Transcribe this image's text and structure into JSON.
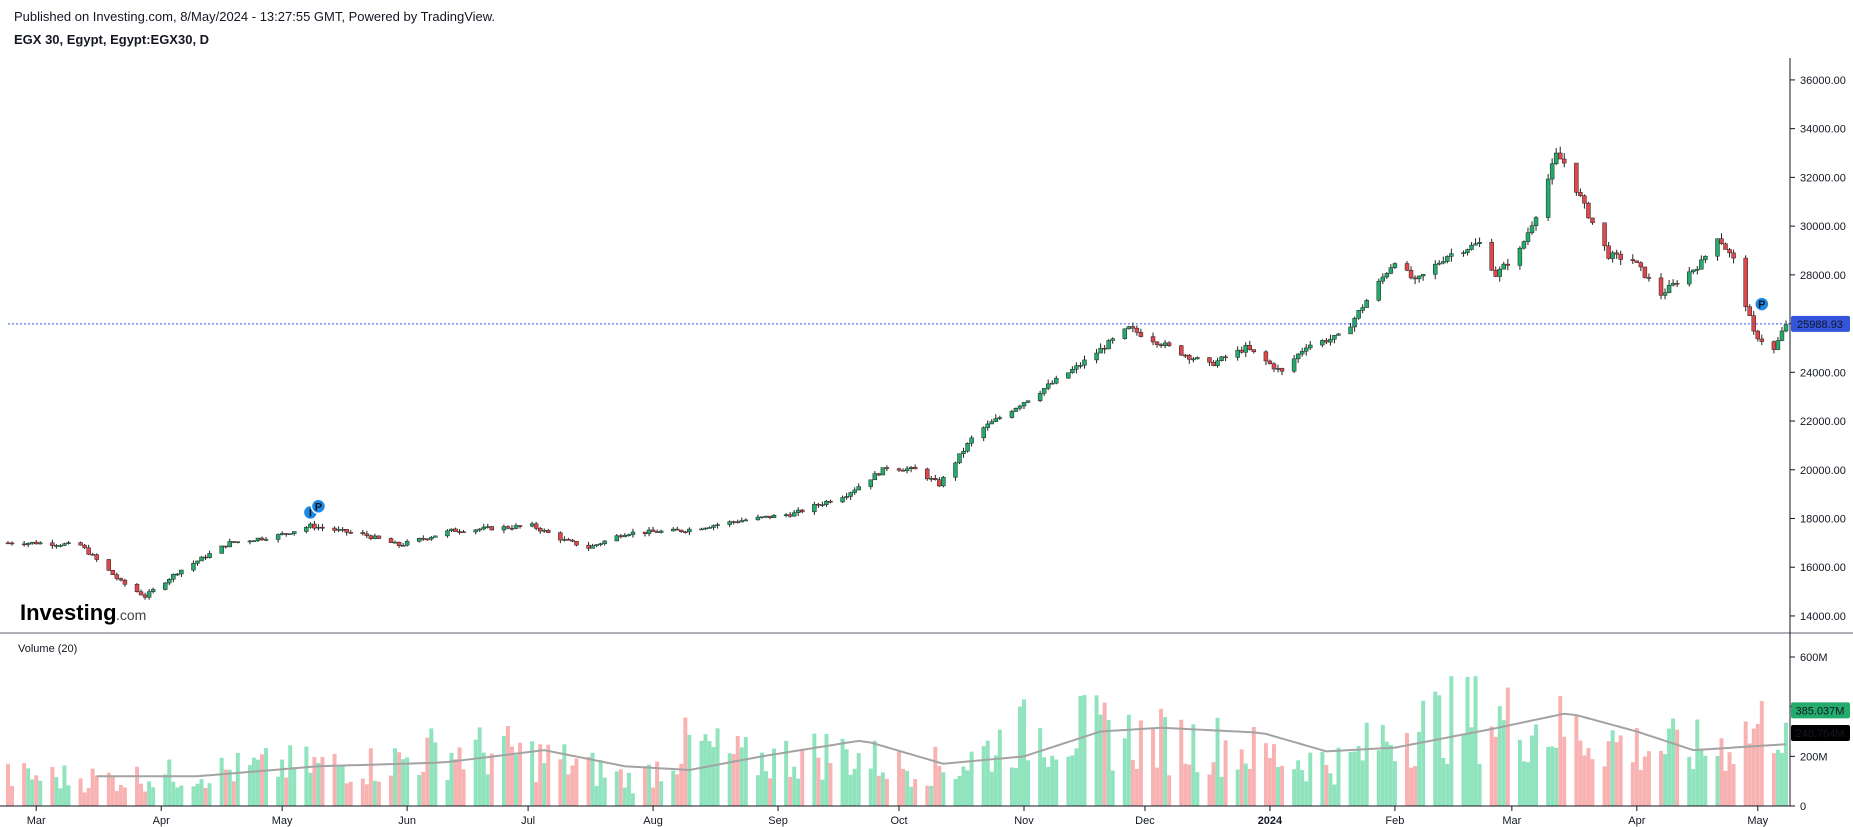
{
  "header": {
    "published": "Published on Investing.com, 8/May/2024 - 13:27:55 GMT, Powered by TradingView.",
    "symbol": "EGX 30, Egypt, Egypt:EGX30, D"
  },
  "logo": {
    "main": "Investing",
    "suffix": ".com"
  },
  "colors": {
    "up": "#22ab6a",
    "down": "#e0474c",
    "vol_up": "#8fe3bd",
    "vol_down": "#f9b2b2",
    "ma": "#a3a3a3",
    "price_line": "#3455db",
    "grid_axis": "#131722"
  },
  "chart_data": [
    {
      "type": "candlestick",
      "title": "EGX 30, Egypt, Egypt:EGX30, D",
      "x_labels": [
        "Mar",
        "Apr",
        "May",
        "Jun",
        "Jul",
        "Aug",
        "Sep",
        "Oct",
        "Nov",
        "Dec",
        "2024",
        "Feb",
        "Mar",
        "Apr",
        "May"
      ],
      "y_ticks": [
        "14000.00",
        "16000.00",
        "18000.00",
        "20000.00",
        "22000.00",
        "24000.00",
        "26000.00",
        "28000.00",
        "30000.00",
        "32000.00",
        "34000.00",
        "36000.00"
      ],
      "ylim": [
        13300,
        36900
      ],
      "last_price": "25988.93",
      "close_anchors": [
        [
          "2023-03-01",
          17000
        ],
        [
          "2023-03-12",
          16900
        ],
        [
          "2023-03-22",
          15400
        ],
        [
          "2023-03-28",
          14800
        ],
        [
          "2023-04-05",
          15800
        ],
        [
          "2023-04-18",
          17000
        ],
        [
          "2023-04-30",
          17300
        ],
        [
          "2023-05-08",
          17700
        ],
        [
          "2023-05-22",
          17300
        ],
        [
          "2023-05-30",
          16900
        ],
        [
          "2023-06-12",
          17500
        ],
        [
          "2023-06-22",
          17600
        ],
        [
          "2023-07-02",
          17700
        ],
        [
          "2023-07-10",
          17100
        ],
        [
          "2023-07-16",
          16800
        ],
        [
          "2023-07-25",
          17400
        ],
        [
          "2023-08-08",
          17500
        ],
        [
          "2023-08-22",
          17900
        ],
        [
          "2023-09-05",
          18200
        ],
        [
          "2023-09-18",
          19000
        ],
        [
          "2023-09-28",
          20100
        ],
        [
          "2023-10-05",
          20000
        ],
        [
          "2023-10-11",
          19400
        ],
        [
          "2023-10-20",
          21500
        ],
        [
          "2023-11-01",
          22800
        ],
        [
          "2023-11-14",
          24200
        ],
        [
          "2023-11-27",
          25800
        ],
        [
          "2023-12-10",
          24800
        ],
        [
          "2023-12-17",
          24300
        ],
        [
          "2023-12-26",
          25000
        ],
        [
          "2024-01-04",
          24000
        ],
        [
          "2024-01-10",
          25100
        ],
        [
          "2024-01-19",
          25500
        ],
        [
          "2024-01-26",
          27200
        ],
        [
          "2024-02-01",
          28600
        ],
        [
          "2024-02-06",
          27700
        ],
        [
          "2024-02-14",
          28800
        ],
        [
          "2024-02-22",
          29300
        ],
        [
          "2024-02-26",
          28000
        ],
        [
          "2024-03-03",
          29000
        ],
        [
          "2024-03-07",
          30500
        ],
        [
          "2024-03-12",
          32900
        ],
        [
          "2024-03-14",
          32600
        ],
        [
          "2024-03-19",
          30800
        ],
        [
          "2024-03-25",
          28800
        ],
        [
          "2024-03-31",
          28600
        ],
        [
          "2024-04-07",
          27200
        ],
        [
          "2024-04-17",
          28500
        ],
        [
          "2024-04-21",
          29600
        ],
        [
          "2024-04-25",
          28600
        ],
        [
          "2024-04-30",
          25600
        ],
        [
          "2024-05-05",
          24900
        ],
        [
          "2024-05-08",
          25989
        ]
      ]
    },
    {
      "type": "bar",
      "title": "Volume (20)",
      "y_ticks": [
        "0",
        "200M",
        "400M",
        "600M"
      ],
      "ylim": [
        0,
        600
      ],
      "unit": "M",
      "last_volume": "385.037M",
      "ma20_last": "248.764M",
      "volume_anchors": [
        [
          "2023-03-01",
          125
        ],
        [
          "2023-03-20",
          115
        ],
        [
          "2023-04-10",
          140
        ],
        [
          "2023-05-01",
          170
        ],
        [
          "2023-05-25",
          175
        ],
        [
          "2023-06-08",
          230
        ],
        [
          "2023-06-25",
          230
        ],
        [
          "2023-07-12",
          180
        ],
        [
          "2023-07-28",
          105
        ],
        [
          "2023-08-10",
          260
        ],
        [
          "2023-08-25",
          190
        ],
        [
          "2023-09-15",
          230
        ],
        [
          "2023-10-01",
          170
        ],
        [
          "2023-10-15",
          165
        ],
        [
          "2023-10-30",
          300
        ],
        [
          "2023-11-15",
          320
        ],
        [
          "2023-12-01",
          280
        ],
        [
          "2023-12-20",
          260
        ],
        [
          "2024-01-05",
          200
        ],
        [
          "2024-01-20",
          180
        ],
        [
          "2024-02-01",
          320
        ],
        [
          "2024-02-20",
          380
        ],
        [
          "2024-03-12",
          330
        ],
        [
          "2024-04-01",
          250
        ],
        [
          "2024-04-20",
          240
        ],
        [
          "2024-05-08",
          385
        ]
      ],
      "ma_anchors": [
        [
          "2023-03-16",
          120
        ],
        [
          "2023-04-10",
          120
        ],
        [
          "2023-05-10",
          160
        ],
        [
          "2023-06-10",
          175
        ],
        [
          "2023-07-05",
          225
        ],
        [
          "2023-07-25",
          160
        ],
        [
          "2023-08-10",
          145
        ],
        [
          "2023-08-28",
          200
        ],
        [
          "2023-09-22",
          265
        ],
        [
          "2023-10-12",
          170
        ],
        [
          "2023-11-01",
          200
        ],
        [
          "2023-11-20",
          300
        ],
        [
          "2023-12-05",
          315
        ],
        [
          "2023-12-30",
          295
        ],
        [
          "2024-01-15",
          220
        ],
        [
          "2024-02-01",
          235
        ],
        [
          "2024-02-25",
          310
        ],
        [
          "2024-03-15",
          375
        ],
        [
          "2024-04-01",
          300
        ],
        [
          "2024-04-15",
          225
        ],
        [
          "2024-05-08",
          248.764
        ]
      ]
    }
  ],
  "markers": [
    {
      "label": "I",
      "date": "2023-05-08",
      "price": 18250
    },
    {
      "label": "P",
      "date": "2023-05-10",
      "price": 18500
    },
    {
      "label": "P",
      "date": "2024-05-02",
      "price": 26800
    }
  ]
}
